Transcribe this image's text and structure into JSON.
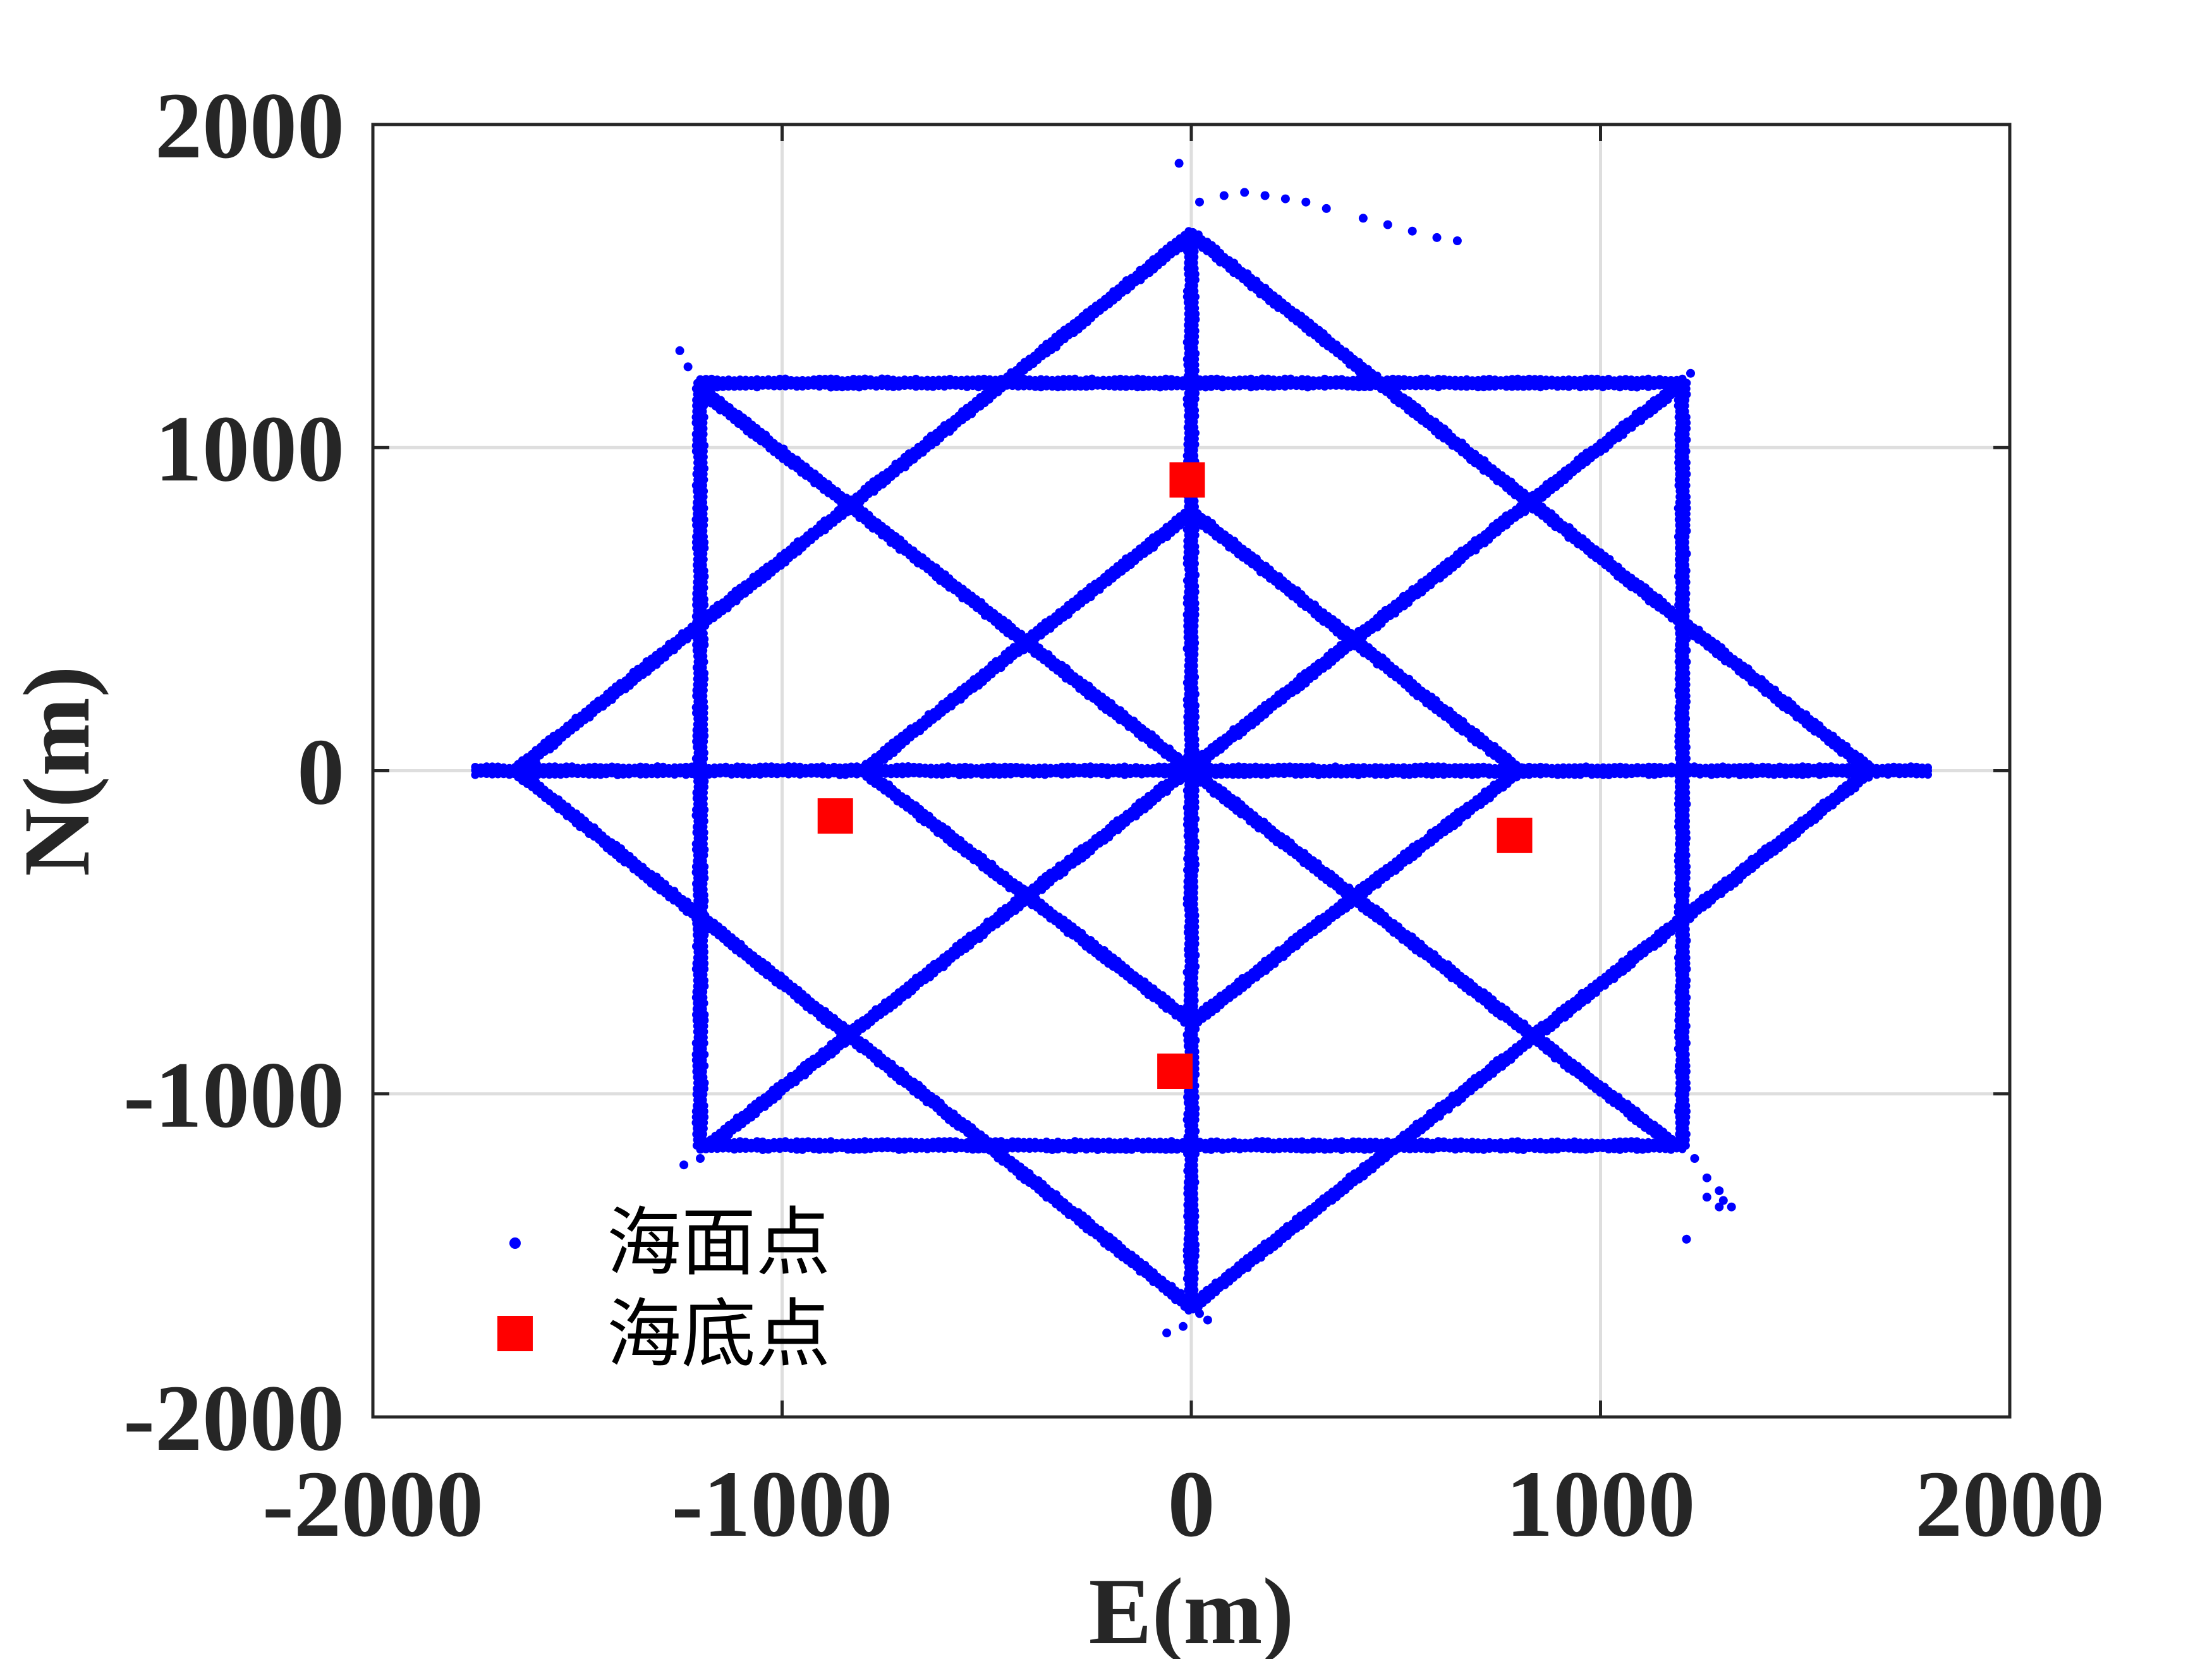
{
  "chart_data": {
    "type": "scatter",
    "xlabel": "E(m)",
    "ylabel": "N(m)",
    "xlim": [
      -2000,
      2000
    ],
    "ylim": [
      -2000,
      2000
    ],
    "xticks": [
      "-2000",
      "-1000",
      "0",
      "1000",
      "2000"
    ],
    "yticks": [
      "2000",
      "1000",
      "0",
      "-1000",
      "-2000"
    ],
    "grid": true,
    "legend_position": "bottom-left",
    "colors": {
      "surface": "#0000ff",
      "seafloor": "#ff0000"
    },
    "series": [
      {
        "name": "海面点",
        "marker": "dot",
        "color": "#0000ff",
        "paths": [
          [
            [
              -1650,
              0
            ],
            [
              0,
              1660
            ],
            [
              1660,
              0
            ],
            [
              0,
              -1660
            ],
            [
              -1650,
              0
            ]
          ],
          [
            [
              -1200,
              1200
            ],
            [
              1200,
              1200
            ],
            [
              1200,
              -1160
            ],
            [
              -1200,
              -1160
            ],
            [
              -1200,
              1200
            ]
          ],
          [
            [
              -1200,
              1180
            ],
            [
              1180,
              -1160
            ]
          ],
          [
            [
              1180,
              1180
            ],
            [
              -1180,
              -1160
            ]
          ],
          [
            [
              -800,
              0
            ],
            [
              0,
              800
            ],
            [
              800,
              0
            ],
            [
              0,
              -780
            ],
            [
              -800,
              0
            ]
          ],
          [
            [
              -1750,
              0
            ],
            [
              1800,
              0
            ]
          ],
          [
            [
              0,
              1660
            ],
            [
              0,
              -1660
            ]
          ]
        ],
        "extra_points": [
          [
            -30,
            1880
          ],
          [
            20,
            1760
          ],
          [
            80,
            1780
          ],
          [
            130,
            1790
          ],
          [
            180,
            1780
          ],
          [
            230,
            1770
          ],
          [
            280,
            1760
          ],
          [
            330,
            1740
          ],
          [
            420,
            1710
          ],
          [
            480,
            1690
          ],
          [
            540,
            1670
          ],
          [
            600,
            1650
          ],
          [
            650,
            1640
          ],
          [
            -1250,
            1300
          ],
          [
            -1230,
            1250
          ],
          [
            -1240,
            -1220
          ],
          [
            -1200,
            -1200
          ],
          [
            1220,
            1230
          ],
          [
            1200,
            1210
          ],
          [
            1230,
            -1200
          ],
          [
            1260,
            -1260
          ],
          [
            1290,
            -1300
          ],
          [
            1300,
            -1330
          ],
          [
            1320,
            -1350
          ],
          [
            1290,
            -1350
          ],
          [
            1210,
            -1450
          ],
          [
            1260,
            -1320
          ],
          [
            -60,
            -1740
          ],
          [
            -20,
            -1720
          ],
          [
            20,
            -1680
          ],
          [
            40,
            -1700
          ],
          [
            1350,
            0
          ],
          [
            1450,
            0
          ],
          [
            1550,
            0
          ],
          [
            1700,
            0
          ],
          [
            1780,
            0
          ],
          [
            -1720,
            0
          ],
          [
            -1600,
            20
          ]
        ]
      },
      {
        "name": "海底点",
        "marker": "square",
        "color": "#ff0000",
        "points": [
          [
            -870,
            -140
          ],
          [
            -10,
            900
          ],
          [
            790,
            -200
          ],
          [
            -40,
            -930
          ]
        ]
      }
    ]
  }
}
